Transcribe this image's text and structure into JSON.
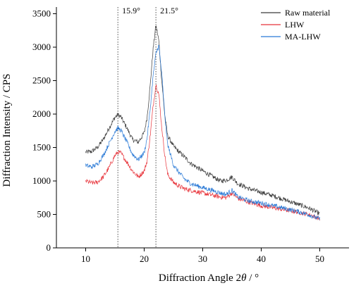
{
  "chart_data": {
    "type": "line",
    "xlabel_prefix": "Diffraction Angle 2",
    "xlabel_theta": "θ",
    "xlabel_suffix": " / °",
    "ylabel": "Diffraction Intensity / CPS",
    "xlim": [
      5,
      55
    ],
    "ylim": [
      0,
      3600
    ],
    "xticks": [
      10,
      20,
      30,
      40,
      50
    ],
    "yticks": [
      0,
      500,
      1000,
      1500,
      2000,
      2500,
      3000,
      3500
    ],
    "legend_position": "top-right",
    "annotations": [
      {
        "x": 15.5,
        "text": "15.9°"
      },
      {
        "x": 22.0,
        "text": "21.5°"
      }
    ],
    "series": [
      {
        "name": "Raw material",
        "color": "#3a3a3a",
        "x": [
          10,
          11,
          12,
          13,
          14,
          15,
          15.5,
          16,
          17,
          18,
          19,
          20,
          20.5,
          21,
          21.5,
          22,
          22.5,
          23,
          23.5,
          24,
          25,
          26,
          27,
          28,
          30,
          32,
          33,
          34,
          35,
          36,
          38,
          40,
          42,
          44,
          46,
          48,
          50
        ],
        "y": [
          1430,
          1440,
          1500,
          1620,
          1790,
          1950,
          1990,
          1960,
          1800,
          1620,
          1580,
          1720,
          1950,
          2400,
          2950,
          3330,
          3100,
          2500,
          2000,
          1680,
          1520,
          1430,
          1350,
          1260,
          1150,
          1050,
          1000,
          1010,
          1060,
          960,
          880,
          830,
          780,
          720,
          660,
          600,
          510
        ]
      },
      {
        "name": "LHW",
        "color": "#e8333a",
        "x": [
          10,
          11,
          12,
          13,
          14,
          15,
          15.5,
          16,
          17,
          18,
          19,
          20,
          20.5,
          21,
          21.5,
          22,
          22.5,
          23,
          23.5,
          24,
          25,
          26,
          27,
          28,
          30,
          32,
          33,
          34,
          35,
          36,
          38,
          40,
          42,
          44,
          46,
          48,
          50
        ],
        "y": [
          1000,
          970,
          980,
          1060,
          1200,
          1380,
          1430,
          1420,
          1290,
          1150,
          1060,
          1150,
          1300,
          1650,
          2100,
          2440,
          2300,
          1800,
          1400,
          1100,
          980,
          920,
          880,
          860,
          820,
          780,
          760,
          750,
          820,
          740,
          680,
          630,
          600,
          570,
          540,
          500,
          440
        ]
      },
      {
        "name": "MA-LHW",
        "color": "#2979d6",
        "x": [
          10,
          11,
          12,
          13,
          14,
          15,
          15.5,
          16,
          17,
          18,
          19,
          20,
          20.5,
          21,
          21.5,
          22,
          22.5,
          23,
          23.5,
          24,
          25,
          26,
          27,
          28,
          30,
          32,
          33,
          34,
          35,
          36,
          38,
          40,
          42,
          44,
          46,
          48,
          50
        ],
        "y": [
          1230,
          1210,
          1250,
          1380,
          1560,
          1740,
          1790,
          1760,
          1590,
          1400,
          1320,
          1420,
          1640,
          2050,
          2550,
          2900,
          3030,
          2600,
          2000,
          1550,
          1240,
          1120,
          1020,
          960,
          900,
          850,
          820,
          800,
          860,
          760,
          700,
          670,
          630,
          590,
          550,
          500,
          430
        ]
      }
    ]
  }
}
